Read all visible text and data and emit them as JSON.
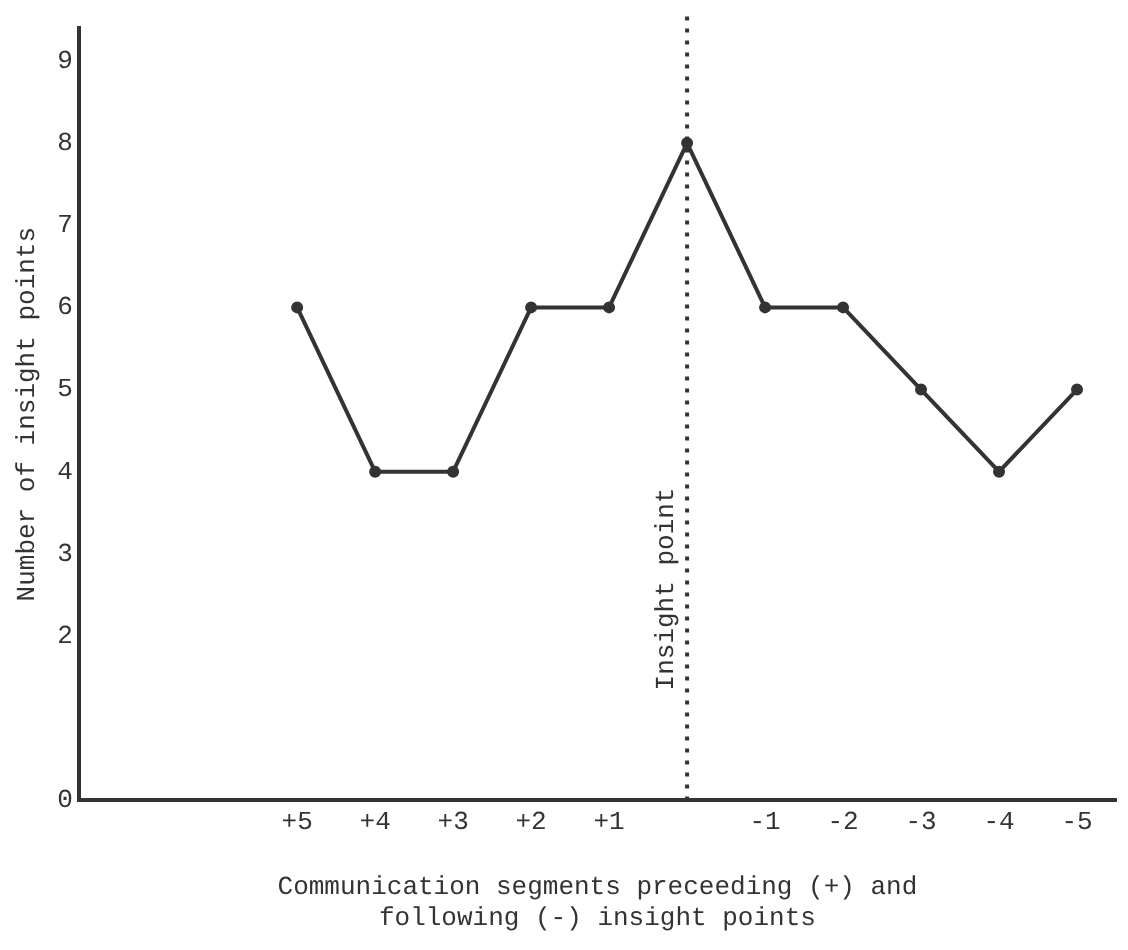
{
  "chart_data": {
    "type": "line",
    "xlabel": "Communication segments preceeding (+) and\nfollowing (-) insight points",
    "ylabel": "Number of insight points",
    "x": [
      5,
      4,
      3,
      2,
      1,
      0,
      -1,
      -2,
      -3,
      -4,
      -5
    ],
    "values": [
      6,
      4,
      4,
      6,
      6,
      8,
      6,
      6,
      5,
      4,
      5
    ],
    "color": "#333333",
    "marker": "circle",
    "line_style": "solid",
    "grid": false,
    "legend": false,
    "xlim": [
      7.8,
      -5.5
    ],
    "xticks": [
      {
        "value": 5,
        "label": "+5"
      },
      {
        "value": 4,
        "label": "+4"
      },
      {
        "value": 3,
        "label": "+3"
      },
      {
        "value": 2,
        "label": "+2"
      },
      {
        "value": 1,
        "label": "+1"
      },
      -1,
      -2,
      -3,
      -4,
      -5
    ],
    "ylim": [
      0,
      9.4
    ],
    "yticks": [
      0,
      2,
      3,
      4,
      5,
      6,
      7,
      8,
      9
    ],
    "ref_lines": [
      {
        "axis": "x",
        "value": 0,
        "label": "Insight point",
        "line_style": "dotted",
        "color": "#333333"
      }
    ]
  }
}
